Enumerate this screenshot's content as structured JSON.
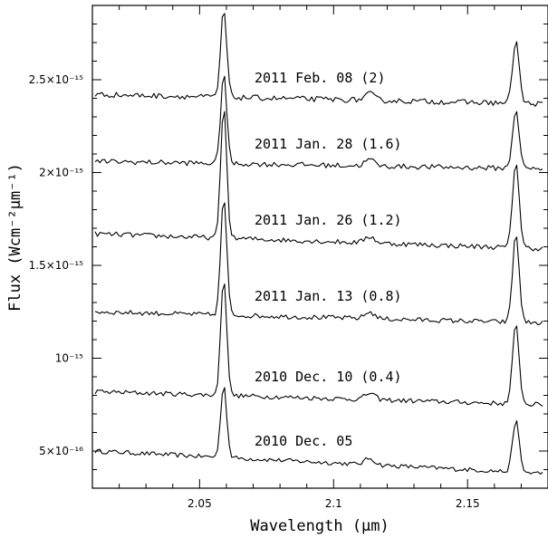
{
  "chart_data": {
    "type": "line",
    "xlabel": "Wavelength (μm)",
    "ylabel": "Flux (Wcm⁻²μm⁻¹)",
    "xlim": [
      2.01,
      2.18
    ],
    "ylim": [
      3e-16,
      2.9e-15
    ],
    "x_ticks": [
      {
        "value": 2.05,
        "label": "2.05"
      },
      {
        "value": 2.1,
        "label": "2.1"
      },
      {
        "value": 2.15,
        "label": "2.15"
      }
    ],
    "y_ticks": [
      {
        "value": 5e-16,
        "label": "5×10⁻¹⁶"
      },
      {
        "value": 1e-15,
        "label": "10⁻¹⁵"
      },
      {
        "value": 1.5e-15,
        "label": "1.5×10⁻¹⁵"
      },
      {
        "value": 2e-15,
        "label": "2×10⁻¹⁵"
      },
      {
        "value": 2.5e-15,
        "label": "2.5×10⁻¹⁵"
      }
    ],
    "series": [
      {
        "label": "2010 Dec. 05",
        "continuum": [
          5e-16,
          3.8e-16
        ],
        "peaks": [
          8.6e-16,
          6.6e-16
        ]
      },
      {
        "label": "2010 Dec. 10 (0.4)",
        "continuum": [
          8.2e-16,
          7.5e-16
        ],
        "peaks": [
          1.44e-15,
          1.18e-15
        ]
      },
      {
        "label": "2011 Jan. 13 (0.8)",
        "continuum": [
          1.25e-15,
          1.19e-15
        ],
        "peaks": [
          1.87e-15,
          1.67e-15
        ]
      },
      {
        "label": "2011 Jan. 26 (1.2)",
        "continuum": [
          1.67e-15,
          1.59e-15
        ],
        "peaks": [
          2.36e-15,
          2.06e-15
        ]
      },
      {
        "label": "2011 Jan. 28 (1.6)",
        "continuum": [
          2.06e-15,
          2.02e-15
        ],
        "peaks": [
          2.54e-15,
          2.34e-15
        ]
      },
      {
        "label": "2011 Feb. 08 (2)",
        "continuum": [
          2.42e-15,
          2.37e-15
        ],
        "peaks": [
          2.88e-15,
          2.71e-15
        ]
      }
    ],
    "lines_um": [
      2.059,
      2.168
    ],
    "grid": false,
    "legend": "none"
  }
}
